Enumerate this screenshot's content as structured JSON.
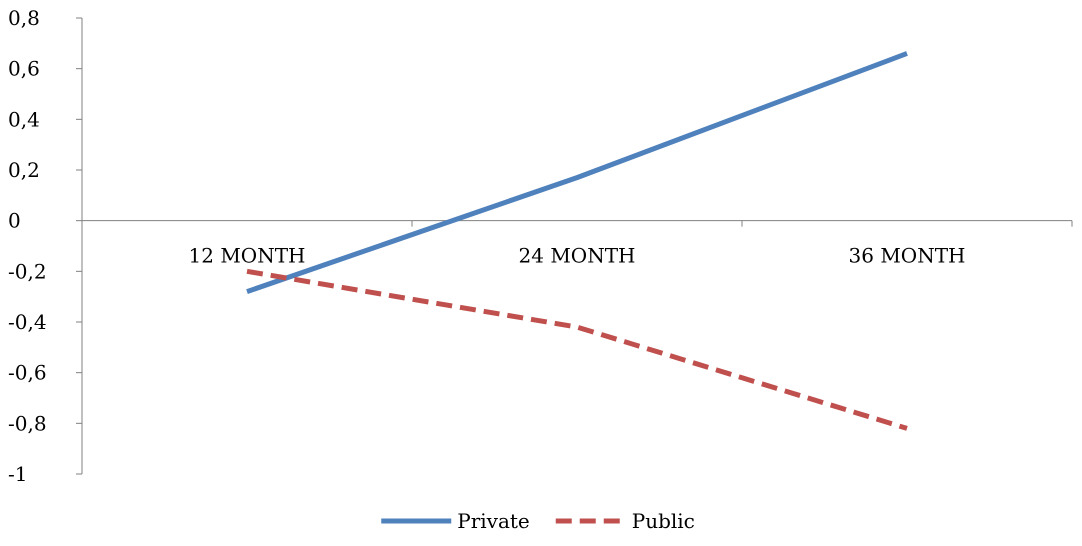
{
  "chart_data": {
    "type": "line",
    "categories": [
      "12 MONTH",
      "24 MONTH",
      "36 MONTH"
    ],
    "series": [
      {
        "name": "Private",
        "values": [
          -0.28,
          0.17,
          0.66
        ],
        "color": "#4F81BD",
        "style": "solid"
      },
      {
        "name": "Public",
        "values": [
          -0.2,
          -0.42,
          -0.82
        ],
        "color": "#C0504D",
        "style": "dashed"
      }
    ],
    "title": "",
    "xlabel": "",
    "ylabel": "",
    "ylim": [
      -1,
      0.8
    ],
    "yticks": [
      {
        "value": 0.8,
        "label": "0,8"
      },
      {
        "value": 0.6,
        "label": "0,6"
      },
      {
        "value": 0.4,
        "label": "0,4"
      },
      {
        "value": 0.2,
        "label": "0,2"
      },
      {
        "value": 0,
        "label": "0"
      },
      {
        "value": -0.2,
        "label": "-0,2"
      },
      {
        "value": -0.4,
        "label": "-0,4"
      },
      {
        "value": -0.6,
        "label": "-0,6"
      },
      {
        "value": -0.8,
        "label": "-0,8"
      },
      {
        "value": -1,
        "label": "-1"
      }
    ],
    "grid": false,
    "legend_position": "bottom"
  }
}
